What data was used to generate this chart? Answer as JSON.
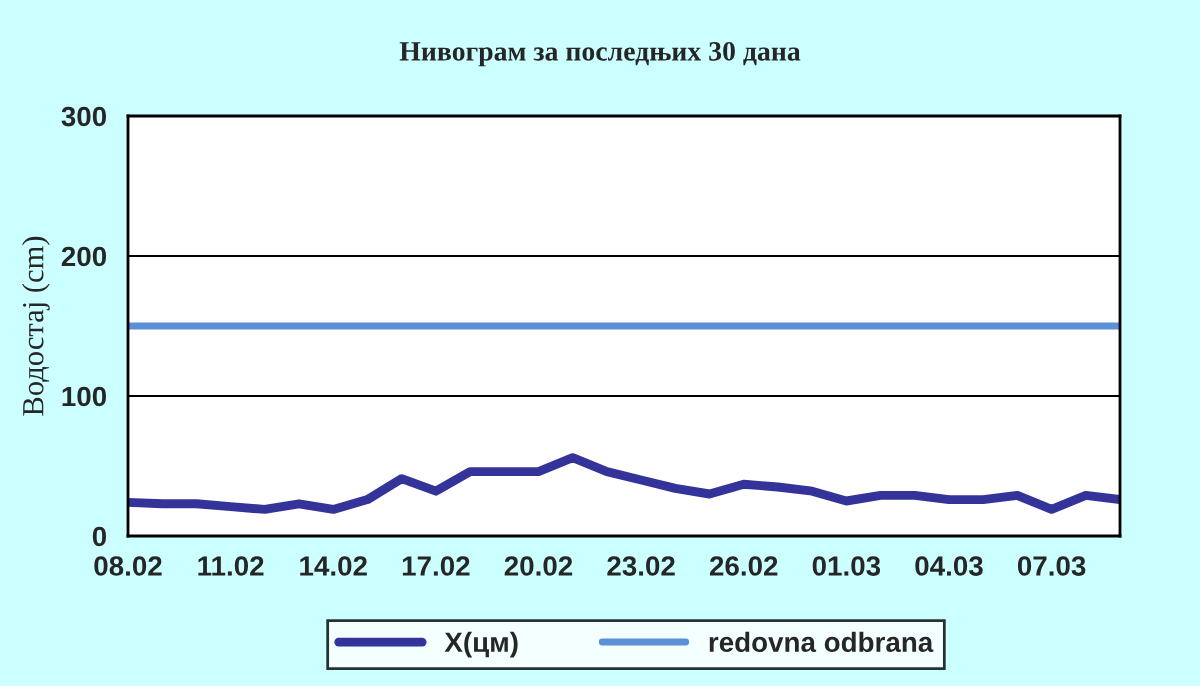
{
  "chart_data": {
    "type": "line",
    "title": "Нивограм за последњих 30 дана",
    "ylabel": "Водостај (cm)",
    "categories": [
      "08.02",
      null,
      null,
      "11.02",
      null,
      null,
      "14.02",
      null,
      null,
      "17.02",
      null,
      null,
      "20.02",
      null,
      null,
      "23.02",
      null,
      null,
      "26.02",
      null,
      null,
      "01.03",
      null,
      null,
      "04.03",
      null,
      null,
      "07.03",
      null,
      null
    ],
    "series": [
      {
        "name": "X(цм)",
        "color": "#333399",
        "values": [
          24,
          23,
          23,
          21,
          19,
          23,
          19,
          26,
          41,
          32,
          46,
          46,
          46,
          56,
          46,
          40,
          34,
          30,
          37,
          35,
          32,
          25,
          29,
          29,
          26,
          26,
          29,
          19,
          29,
          26
        ]
      }
    ],
    "ref_lines": [
      {
        "axis": "y",
        "value": 150,
        "label": "redovna odbrana",
        "color": "#5b8fd6"
      }
    ],
    "ylim": [
      0,
      300
    ],
    "yticks": [
      0,
      100,
      200,
      300
    ],
    "grid": "y",
    "legend": "bottom",
    "marker": "none",
    "line_style": "solid"
  }
}
